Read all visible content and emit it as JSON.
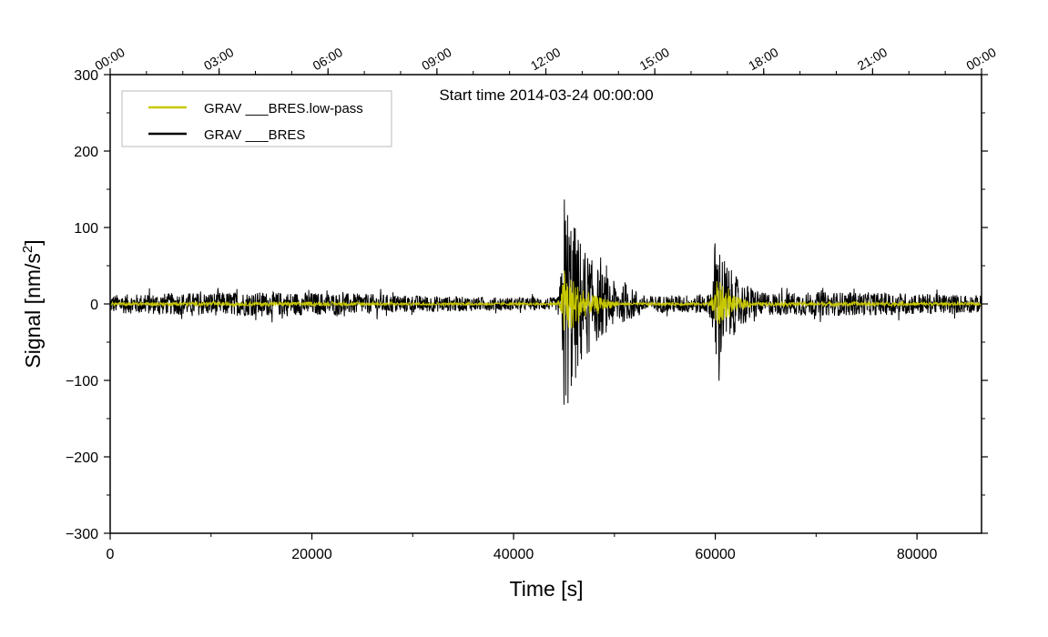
{
  "chart_data": {
    "type": "line",
    "title": "Start time 2014-03-24 00:00:00",
    "xlabel": "Time [s]",
    "ylabel": "Signal [nm/s",
    "ylabel_sup": "2",
    "ylabel_end": "]",
    "xlim": [
      0,
      86400
    ],
    "ylim": [
      -300,
      300
    ],
    "x_ticks": [
      0,
      20000,
      40000,
      60000,
      80000
    ],
    "x_tick_labels": [
      "0",
      "20000",
      "40000",
      "60000",
      "80000"
    ],
    "x_minor_step": 10000,
    "y_ticks": [
      -300,
      -200,
      -100,
      0,
      100,
      200,
      300
    ],
    "y_tick_labels": [
      "−300",
      "−200",
      "−100",
      "0",
      "100",
      "200",
      "300"
    ],
    "top_axis_ticks": [
      0,
      10800,
      21600,
      32400,
      43200,
      54000,
      64800,
      75600,
      86400
    ],
    "top_axis_labels": [
      "00:00",
      "03:00",
      "06:00",
      "09:00",
      "12:00",
      "15:00",
      "18:00",
      "21:00",
      "00:00"
    ],
    "top_minor_step": 3600,
    "grid": false,
    "legend_position": "top-left",
    "series": [
      {
        "name": "GRAV ___BRES",
        "color": "#000000",
        "baseline_amplitude": 12,
        "events": [
          {
            "t": 45000,
            "peak": 185,
            "min": -190,
            "decay": 2500
          },
          {
            "t": 60000,
            "peak": 110,
            "min": -115,
            "decay": 1500
          }
        ]
      },
      {
        "name": "GRAV ___BRES.low-pass",
        "color": "#c8c800",
        "baseline_amplitude": 2,
        "events": [
          {
            "t": 45000,
            "peak": 65,
            "min": -65,
            "decay": 1800
          },
          {
            "t": 60000,
            "peak": 50,
            "min": -50,
            "decay": 1200
          }
        ]
      }
    ]
  }
}
